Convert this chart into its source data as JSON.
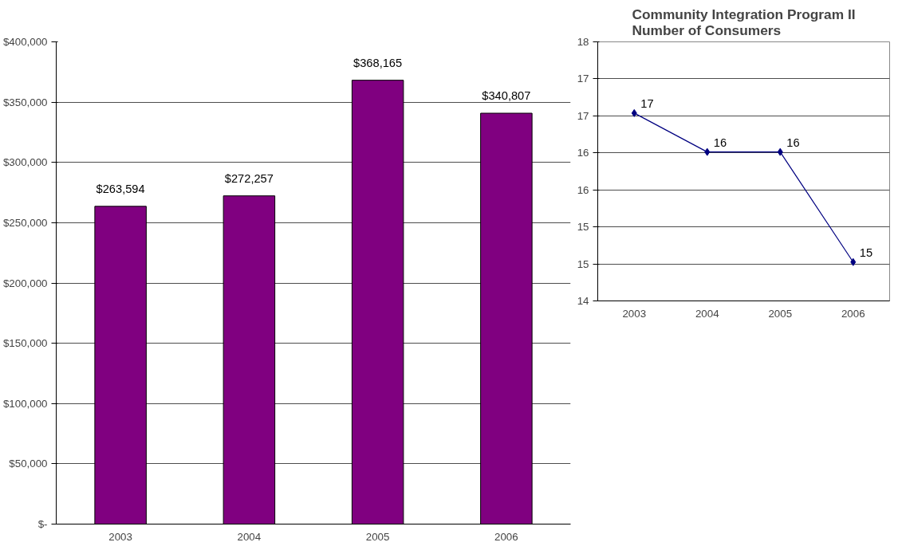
{
  "chart_data": [
    {
      "type": "bar",
      "categories": [
        "2003",
        "2004",
        "2005",
        "2006"
      ],
      "values": [
        263594,
        272257,
        368165,
        340807
      ],
      "color": "#800080",
      "value_labels": [
        "$263,594",
        "$272,257",
        "$368,165",
        "$340,807"
      ],
      "ylim": [
        0,
        400000
      ],
      "yticks": [
        {
          "value": 0,
          "label": "$-"
        },
        {
          "value": 50000,
          "label": "$50,000"
        },
        {
          "value": 100000,
          "label": "$100,000"
        },
        {
          "value": 150000,
          "label": "$150,000"
        },
        {
          "value": 200000,
          "label": "$200,000"
        },
        {
          "value": 250000,
          "label": "$250,000"
        },
        {
          "value": 300000,
          "label": "$300,000"
        },
        {
          "value": 350000,
          "label": "$350,000"
        },
        {
          "value": 400000,
          "label": "$400,000"
        }
      ],
      "grid": "y"
    },
    {
      "type": "line",
      "title": "Community Integration Program II\nNumber of Consumers",
      "categories": [
        "2003",
        "2004",
        "2005",
        "2006"
      ],
      "values": [
        16.9,
        16.3,
        16.3,
        14.6
      ],
      "color": "#000080",
      "value_labels": [
        "17",
        "16",
        "16",
        "15"
      ],
      "marker": "diamond",
      "ylim": [
        14,
        18
      ],
      "yticks": [
        14,
        {
          "value": 14.57,
          "label": "15"
        },
        {
          "value": 15.14,
          "label": "15"
        },
        {
          "value": 15.71,
          "label": "16"
        },
        {
          "value": 16.29,
          "label": "16"
        },
        {
          "value": 16.86,
          "label": "17"
        },
        {
          "value": 17.43,
          "label": "17"
        },
        18
      ],
      "grid": "y"
    }
  ]
}
